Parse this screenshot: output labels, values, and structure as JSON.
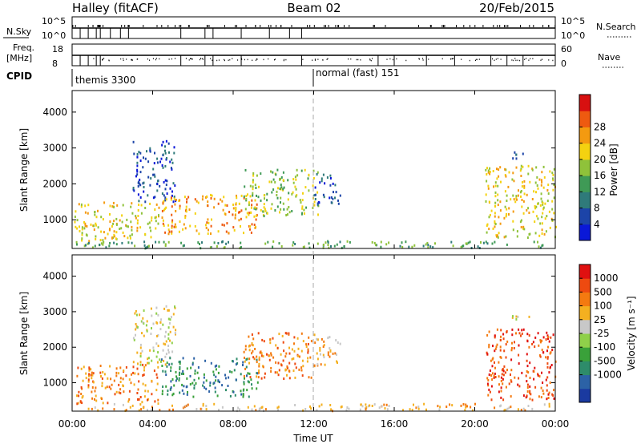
{
  "header": {
    "station": "Halley (fitACF)",
    "beam": "Beam 02",
    "date": "20/Feb/2015"
  },
  "meta_panel": {
    "nsky_label": "N.Sky",
    "nsearch_label": "N.Search",
    "freq_label_1": "Freq.",
    "freq_label_2": "[MHz]",
    "nave_label": "Nave",
    "cpid_label": "CPID",
    "nsky_ticks": [
      "10^5",
      "10^0"
    ],
    "nsearch_ticks": [
      "10^5",
      "10^0"
    ],
    "freq_ticks": [
      "18",
      "8"
    ],
    "nave_ticks": [
      "60",
      "0"
    ],
    "cpid_entries": [
      {
        "label": "themis 3300",
        "start_hour": 0
      },
      {
        "label": "normal (fast) 151",
        "start_hour": 12
      }
    ]
  },
  "x_axis": {
    "label": "Time UT",
    "ticks": [
      "00:00",
      "04:00",
      "08:00",
      "12:00",
      "16:00",
      "20:00",
      "00:00"
    ],
    "tick_hours": [
      0,
      4,
      8,
      12,
      16,
      20,
      24
    ]
  },
  "chart_data": [
    {
      "type": "heatmap",
      "panel": "power",
      "ylabel": "Slant Range [km]",
      "yticks": [
        1000,
        2000,
        3000,
        4000
      ],
      "ylim": [
        200,
        4600
      ],
      "xlim_hours": [
        0,
        24
      ],
      "colorbar_label": "Power [dB]",
      "colorbar_ticks": [
        "4",
        "8",
        "12",
        "16",
        "20",
        "24",
        "28"
      ],
      "colorbar_colors": [
        "#0a18d8",
        "#1c44a8",
        "#2f7a7a",
        "#3f9a56",
        "#8fc23a",
        "#f4d210",
        "#f49a10",
        "#ee5a10",
        "#d81010"
      ],
      "features": [
        {
          "hour_start": 0.1,
          "hour_end": 4.3,
          "range_low": 400,
          "range_high": 1500,
          "level": 5
        },
        {
          "hour_start": 3.0,
          "hour_end": 5.1,
          "range_low": 1500,
          "range_high": 3200,
          "level": 1
        },
        {
          "hour_start": 4.4,
          "hour_end": 9.2,
          "range_low": 600,
          "range_high": 1700,
          "level": 6
        },
        {
          "hour_start": 8.5,
          "hour_end": 12.2,
          "range_low": 1100,
          "range_high": 2400,
          "level": 4
        },
        {
          "hour_start": 12.0,
          "hour_end": 13.3,
          "range_low": 1400,
          "range_high": 2300,
          "level": 1
        },
        {
          "hour_start": 20.5,
          "hour_end": 24.0,
          "range_low": 500,
          "range_high": 2500,
          "level": 5
        },
        {
          "hour_start": 21.8,
          "hour_end": 22.8,
          "range_low": 2700,
          "range_high": 2900,
          "level": 1
        },
        {
          "hour_start": 0.0,
          "hour_end": 24.0,
          "range_low": 200,
          "range_high": 400,
          "level": 3
        }
      ]
    },
    {
      "type": "heatmap",
      "panel": "velocity",
      "ylabel": "Slant Range [km]",
      "yticks": [
        1000,
        2000,
        3000,
        4000
      ],
      "ylim": [
        200,
        4600
      ],
      "xlim_hours": [
        0,
        24
      ],
      "colorbar_label": "Velocity [m s⁻¹]",
      "colorbar_ticks": [
        "1000",
        "500",
        "100",
        "25",
        "-25",
        "-100",
        "-500",
        "-1000"
      ],
      "colorbar_colors": [
        "#1a3aa0",
        "#2c62a6",
        "#2e8c6a",
        "#3aa13a",
        "#8fd04a",
        "#c8c8c8",
        "#f4b020",
        "#f47a10",
        "#ee4a10",
        "#e01010"
      ],
      "features": [
        {
          "hour_start": 0.1,
          "hour_end": 4.3,
          "range_low": 400,
          "range_high": 1500,
          "level": 7
        },
        {
          "hour_start": 3.0,
          "hour_end": 5.1,
          "range_low": 1500,
          "range_high": 3200,
          "level": 5
        },
        {
          "hour_start": 4.4,
          "hour_end": 9.2,
          "range_low": 600,
          "range_high": 1700,
          "level": 2
        },
        {
          "hour_start": 8.5,
          "hour_end": 12.2,
          "range_low": 1100,
          "range_high": 2400,
          "level": 7
        },
        {
          "hour_start": 12.0,
          "hour_end": 13.3,
          "range_low": 1400,
          "range_high": 2300,
          "level": 6
        },
        {
          "hour_start": 20.5,
          "hour_end": 24.0,
          "range_low": 500,
          "range_high": 2500,
          "level": 8
        },
        {
          "hour_start": 21.8,
          "hour_end": 22.8,
          "range_low": 2700,
          "range_high": 2900,
          "level": 5
        },
        {
          "hour_start": 0.0,
          "hour_end": 24.0,
          "range_low": 200,
          "range_high": 400,
          "level": 6
        }
      ]
    }
  ]
}
